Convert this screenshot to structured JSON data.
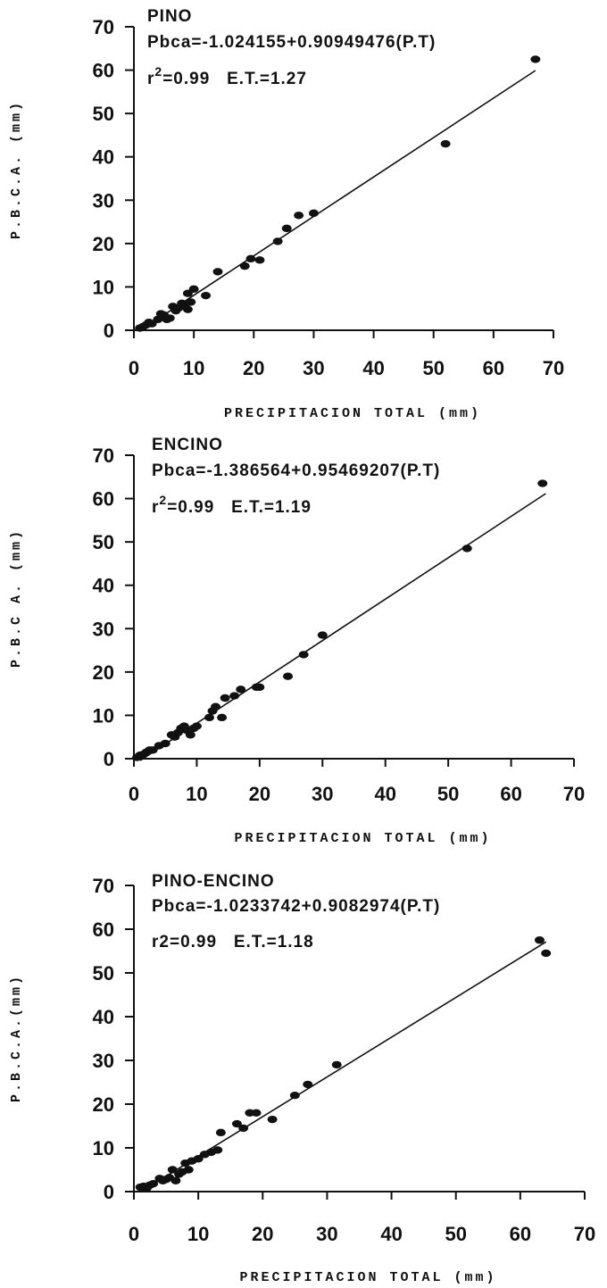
{
  "chart_data": [
    {
      "type": "scatter",
      "title": "PINO",
      "equation": "Pbca=-1.024155+0.90949476(P.T)",
      "r2_prefix": "r",
      "r2_sup": "2",
      "r2_rest": "=0.99   E.T.=1.27",
      "xlabel": "PRECIPITACION TOTAL (mm)",
      "ylabel": "P.B.C.A. (mm)",
      "xlim": [
        0,
        70
      ],
      "ylim": [
        0,
        70
      ],
      "xticks": [
        "0",
        "10",
        "20",
        "30",
        "40",
        "50",
        "60",
        "70"
      ],
      "yticks": [
        "0",
        "10",
        "20",
        "30",
        "40",
        "50",
        "60",
        "70"
      ],
      "regression": {
        "intercept": -1.024155,
        "slope": 0.90949476,
        "x_range": [
          1,
          67
        ]
      },
      "points": [
        [
          1,
          0.5
        ],
        [
          1.5,
          0.8
        ],
        [
          2,
          1.2
        ],
        [
          2.5,
          1.8
        ],
        [
          3,
          1.5
        ],
        [
          4,
          2.5
        ],
        [
          4.5,
          3.8
        ],
        [
          5,
          3.5
        ],
        [
          5.5,
          2.5
        ],
        [
          6,
          2.8
        ],
        [
          6.5,
          5.5
        ],
        [
          7,
          4.5
        ],
        [
          7.5,
          5.2
        ],
        [
          8,
          6.2
        ],
        [
          8.5,
          5.5
        ],
        [
          9,
          4.8
        ],
        [
          9,
          8.5
        ],
        [
          9.5,
          6.5
        ],
        [
          10,
          9.5
        ],
        [
          12,
          8
        ],
        [
          14,
          13.5
        ],
        [
          18.5,
          14.8
        ],
        [
          19.5,
          16.5
        ],
        [
          21,
          16.2
        ],
        [
          24,
          20.5
        ],
        [
          25.5,
          23.5
        ],
        [
          27.5,
          26.5
        ],
        [
          30,
          27
        ],
        [
          52,
          43
        ],
        [
          67,
          62.5
        ]
      ]
    },
    {
      "type": "scatter",
      "title": "ENCINO",
      "equation": "Pbca=-1.386564+0.95469207(P.T)",
      "r2_prefix": "r",
      "r2_sup": "2",
      "r2_rest": "=0.99   E.T.=1.19",
      "xlabel": "PRECIPITACION TOTAL (mm)",
      "ylabel": "P.B.C A. (mm)",
      "xlim": [
        0,
        70
      ],
      "ylim": [
        0,
        70
      ],
      "xticks": [
        "0",
        "10",
        "20",
        "30",
        "40",
        "50",
        "60",
        "70"
      ],
      "yticks": [
        "0",
        "10",
        "20",
        "30",
        "40",
        "50",
        "60",
        "70"
      ],
      "regression": {
        "intercept": -1.386564,
        "slope": 0.95469207,
        "x_range": [
          1,
          65.5
        ]
      },
      "points": [
        [
          0.5,
          0.3
        ],
        [
          1,
          0.8
        ],
        [
          1.5,
          1
        ],
        [
          2,
          1.5
        ],
        [
          2.5,
          2
        ],
        [
          3,
          2
        ],
        [
          4,
          3
        ],
        [
          5,
          3.5
        ],
        [
          6,
          5.5
        ],
        [
          6.5,
          5
        ],
        [
          7,
          6
        ],
        [
          7.5,
          7
        ],
        [
          8,
          7.5
        ],
        [
          8.5,
          6.5
        ],
        [
          9,
          5.5
        ],
        [
          9.5,
          7
        ],
        [
          10,
          7.5
        ],
        [
          12,
          9.5
        ],
        [
          12.5,
          11
        ],
        [
          13,
          12
        ],
        [
          14,
          9.5
        ],
        [
          14.5,
          14
        ],
        [
          16,
          14.5
        ],
        [
          17,
          16
        ],
        [
          19.5,
          16.5
        ],
        [
          20,
          16.5
        ],
        [
          24.5,
          19
        ],
        [
          27,
          24
        ],
        [
          30,
          28.5
        ],
        [
          53,
          48.5
        ],
        [
          65,
          63.5
        ]
      ]
    },
    {
      "type": "scatter",
      "title": "PINO-ENCINO",
      "equation": "Pbca=-1.0233742+0.9082974(P.T)",
      "r2_prefix": "r2",
      "r2_sup": "",
      "r2_rest": "=0.99   E.T.=1.18",
      "xlabel": "PRECIPITACION TOTAL (mm)",
      "ylabel": "P.B.C.A.(mm)",
      "xlim": [
        0,
        70
      ],
      "ylim": [
        0,
        70
      ],
      "xticks": [
        "0",
        "10",
        "20",
        "30",
        "40",
        "50",
        "60",
        "70"
      ],
      "yticks": [
        "0",
        "10",
        "20",
        "30",
        "40",
        "50",
        "60",
        "70"
      ],
      "regression": {
        "intercept": -1.0233742,
        "slope": 0.9082974,
        "x_range": [
          1,
          64
        ]
      },
      "points": [
        [
          1,
          1
        ],
        [
          1.5,
          1.2
        ],
        [
          2,
          0.8
        ],
        [
          2.5,
          1.5
        ],
        [
          3,
          1.8
        ],
        [
          4,
          3
        ],
        [
          4.5,
          2.5
        ],
        [
          5,
          2.8
        ],
        [
          5.5,
          3.2
        ],
        [
          6,
          5
        ],
        [
          6.5,
          2.5
        ],
        [
          7,
          4
        ],
        [
          7.5,
          4.5
        ],
        [
          8,
          6.5
        ],
        [
          8.5,
          5
        ],
        [
          9,
          7
        ],
        [
          10,
          7.5
        ],
        [
          11,
          8.5
        ],
        [
          12,
          9
        ],
        [
          13,
          9.5
        ],
        [
          13.5,
          13.5
        ],
        [
          16,
          15.5
        ],
        [
          17,
          14.5
        ],
        [
          18,
          18
        ],
        [
          19,
          18
        ],
        [
          21.5,
          16.5
        ],
        [
          25,
          22
        ],
        [
          27,
          24.5
        ],
        [
          31.5,
          29
        ],
        [
          63,
          57.5
        ],
        [
          64,
          54.5
        ]
      ]
    }
  ]
}
